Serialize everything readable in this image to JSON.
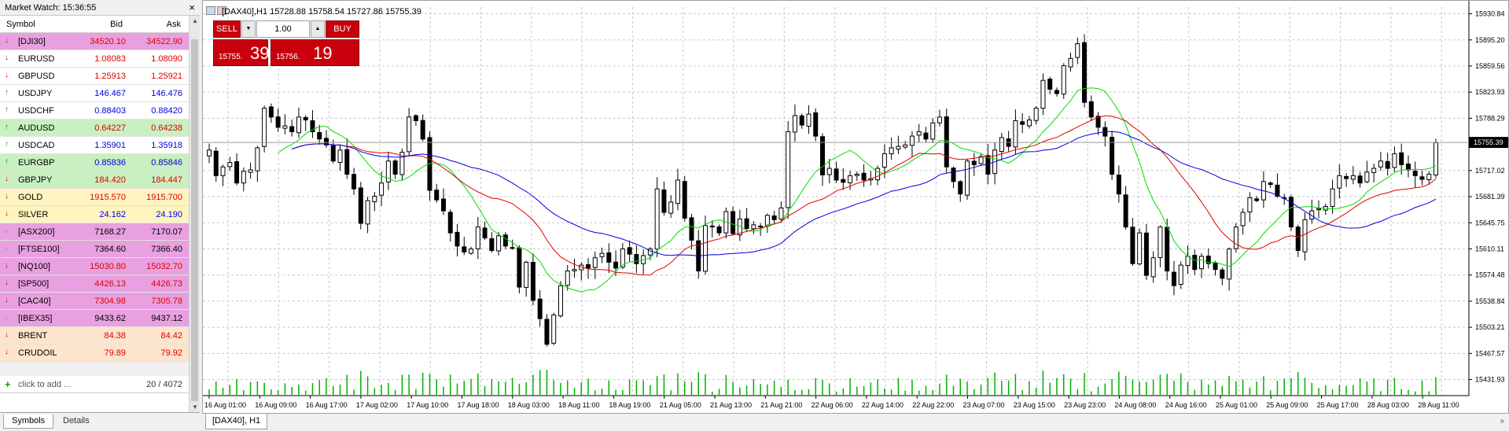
{
  "market_watch": {
    "title": "Market Watch: 15:36:55",
    "close_glyph": "×",
    "columns": {
      "symbol": "Symbol",
      "bid": "Bid",
      "ask": "Ask"
    },
    "rows": [
      {
        "symbol": "[DJI30]",
        "bid": "34520.10",
        "ask": "34522.90",
        "dir": "down",
        "bg": "#e8a0e0",
        "val": "down"
      },
      {
        "symbol": "EURUSD",
        "bid": "1.08083",
        "ask": "1.08090",
        "dir": "down",
        "bg": "#ffffff",
        "val": "down"
      },
      {
        "symbol": "GBPUSD",
        "bid": "1.25913",
        "ask": "1.25921",
        "dir": "down",
        "bg": "#ffffff",
        "val": "down"
      },
      {
        "symbol": "USDJPY",
        "bid": "146.467",
        "ask": "146.476",
        "dir": "up",
        "bg": "#ffffff",
        "val": "up"
      },
      {
        "symbol": "USDCHF",
        "bid": "0.88403",
        "ask": "0.88420",
        "dir": "up",
        "bg": "#ffffff",
        "val": "up"
      },
      {
        "symbol": "AUDUSD",
        "bid": "0.64227",
        "ask": "0.64238",
        "dir": "up",
        "bg": "#c8f0c0",
        "val": "down"
      },
      {
        "symbol": "USDCAD",
        "bid": "1.35901",
        "ask": "1.35918",
        "dir": "up",
        "bg": "#ffffff",
        "val": "up"
      },
      {
        "symbol": "EURGBP",
        "bid": "0.85836",
        "ask": "0.85846",
        "dir": "up",
        "bg": "#c8f0c0",
        "val": "up"
      },
      {
        "symbol": "GBPJPY",
        "bid": "184.420",
        "ask": "184.447",
        "dir": "down",
        "bg": "#c8f0c0",
        "val": "down"
      },
      {
        "symbol": "GOLD",
        "bid": "1915.570",
        "ask": "1915.700",
        "dir": "down",
        "bg": "#fff4c0",
        "val": "down"
      },
      {
        "symbol": "SILVER",
        "bid": "24.162",
        "ask": "24.190",
        "dir": "down",
        "bg": "#fff4c0",
        "val": "up"
      },
      {
        "symbol": "[ASX200]",
        "bid": "7168.27",
        "ask": "7170.07",
        "dir": "none",
        "bg": "#e8a0e0",
        "val": "neutral"
      },
      {
        "symbol": "[FTSE100]",
        "bid": "7364.60",
        "ask": "7366.40",
        "dir": "none",
        "bg": "#e8a0e0",
        "val": "neutral"
      },
      {
        "symbol": "[NQ100]",
        "bid": "15030.80",
        "ask": "15032.70",
        "dir": "down",
        "bg": "#e8a0e0",
        "val": "down"
      },
      {
        "symbol": "[SP500]",
        "bid": "4426.13",
        "ask": "4426.73",
        "dir": "down",
        "bg": "#e8a0e0",
        "val": "down"
      },
      {
        "symbol": "[CAC40]",
        "bid": "7304.98",
        "ask": "7305.78",
        "dir": "down",
        "bg": "#e8a0e0",
        "val": "down"
      },
      {
        "symbol": "[IBEX35]",
        "bid": "9433.62",
        "ask": "9437.12",
        "dir": "none",
        "bg": "#e8a0e0",
        "val": "neutral"
      },
      {
        "symbol": "BRENT",
        "bid": "84.38",
        "ask": "84.42",
        "dir": "down",
        "bg": "#fde4cc",
        "val": "down"
      },
      {
        "symbol": "CRUDOIL",
        "bid": "79.89",
        "ask": "79.92",
        "dir": "down",
        "bg": "#fde4cc",
        "val": "down"
      }
    ],
    "add_label": "click to add ...",
    "count": "20 / 4072",
    "tabs": {
      "symbols": "Symbols",
      "details": "Details"
    }
  },
  "chart": {
    "info": "[DAX40],H1  15728.88 15758.54 15727.86 15755.39",
    "tab_label": "[DAX40], H1",
    "current_price_label": "15755.39",
    "current_price": 15755.39,
    "price_labels": [
      "15930.84",
      "15895.20",
      "15859.56",
      "15823.93",
      "15788.29",
      "15717.02",
      "15681.39",
      "15645.75",
      "15610.11",
      "15574.48",
      "15538.84",
      "15503.21",
      "15467.57",
      "15431.93"
    ],
    "time_labels": [
      "16 Aug 01:00",
      "16 Aug 09:00",
      "16 Aug 17:00",
      "17 Aug 02:00",
      "17 Aug 10:00",
      "17 Aug 18:00",
      "18 Aug 03:00",
      "18 Aug 11:00",
      "18 Aug 19:00",
      "21 Aug 05:00",
      "21 Aug 13:00",
      "21 Aug 21:00",
      "22 Aug 06:00",
      "22 Aug 14:00",
      "22 Aug 22:00",
      "23 Aug 07:00",
      "23 Aug 15:00",
      "23 Aug 23:00",
      "24 Aug 08:00",
      "24 Aug 16:00",
      "25 Aug 01:00",
      "25 Aug 09:00",
      "25 Aug 17:00",
      "28 Aug 03:00",
      "28 Aug 11:00"
    ],
    "colors": {
      "ma_fast": "#00dd00",
      "ma_mid": "#e00000",
      "ma_slow": "#0000e0",
      "volume": "#00b000",
      "candle": "#000000"
    }
  },
  "trading": {
    "sell_label": "SELL",
    "buy_label": "BUY",
    "volume": "1.00",
    "sell_price_small": "15755.",
    "sell_price_big": "39",
    "buy_price_small": "15756.",
    "buy_price_big": "19",
    "btn_color": "#c8000d"
  },
  "chart_data": {
    "type": "candlestick",
    "ylim": [
      15410,
      15940
    ],
    "closes": [
      15745,
      15710,
      15722,
      15728,
      15700,
      15716,
      15718,
      15748,
      15802,
      15790,
      15776,
      15778,
      15770,
      15790,
      15786,
      15770,
      15760,
      15752,
      15730,
      15745,
      15712,
      15692,
      15645,
      15676,
      15682,
      15700,
      15730,
      15712,
      15742,
      15790,
      15785,
      15760,
      15690,
      15677,
      15662,
      15632,
      15614,
      15606,
      15610,
      15640,
      15625,
      15608,
      15628,
      15614,
      15612,
      15558,
      15592,
      15540,
      15515,
      15480,
      15520,
      15560,
      15580,
      15582,
      15588,
      15584,
      15598,
      15604,
      15592,
      15584,
      15610,
      15603,
      15590,
      15601,
      15610,
      15692,
      15660,
      15674,
      15704,
      15652,
      15622,
      15580,
      15642,
      15640,
      15632,
      15661,
      15631,
      15651,
      15638,
      15643,
      15640,
      15656,
      15650,
      15666,
      15770,
      15792,
      15779,
      15794,
      15764,
      15711,
      15720,
      15704,
      15701,
      15710,
      15712,
      15704,
      15706,
      15720,
      15740,
      15748,
      15750,
      15752,
      15764,
      15770,
      15760,
      15782,
      15790,
      15722,
      15702,
      15685,
      15730,
      15725,
      15736,
      15712,
      15745,
      15762,
      15750,
      15785,
      15780,
      15786,
      15802,
      15840,
      15828,
      15822,
      15860,
      15870,
      15890,
      15810,
      15790,
      15776,
      15764,
      15712,
      15685,
      15640,
      15590,
      15632,
      15574,
      15598,
      15640,
      15580,
      15560,
      15588,
      15600,
      15582,
      15600,
      15590,
      15582,
      15570,
      15610,
      15640,
      15660,
      15680,
      15676,
      15702,
      15698,
      15682,
      15680,
      15640,
      15608,
      15650,
      15662,
      15665,
      15668,
      15692,
      15710,
      15706,
      15710,
      15700,
      15715,
      15720,
      15730,
      15720,
      15740,
      15725,
      15718,
      15710,
      15705,
      15712,
      15755
    ]
  }
}
